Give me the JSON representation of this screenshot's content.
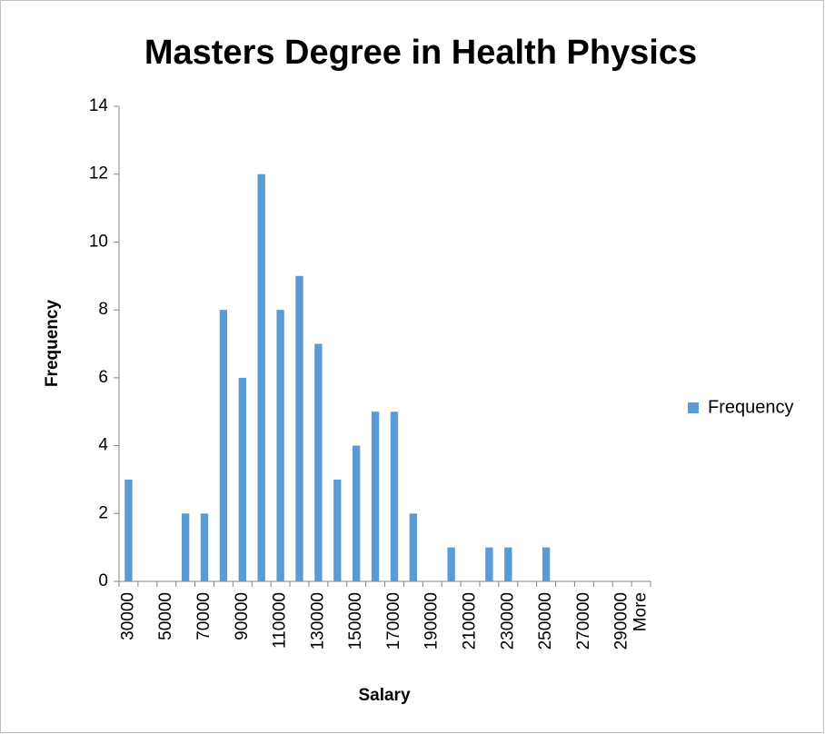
{
  "chart_data": {
    "type": "bar",
    "title": "Masters Degree in Health Physics",
    "x_label": "Salary",
    "y_label": "Frequency",
    "categories": [
      "30000",
      null,
      "50000",
      null,
      "70000",
      null,
      "90000",
      null,
      "110000",
      null,
      "130000",
      null,
      "150000",
      null,
      "170000",
      null,
      "190000",
      null,
      "210000",
      null,
      "230000",
      null,
      "250000",
      null,
      "270000",
      null,
      "290000",
      "More"
    ],
    "series": [
      {
        "name": "Frequency",
        "color": "#5b9bd5",
        "values": [
          3,
          0,
          0,
          2,
          2,
          8,
          6,
          12,
          8,
          9,
          7,
          3,
          4,
          5,
          5,
          2,
          0,
          1,
          0,
          1,
          1,
          0,
          1,
          0,
          0,
          0,
          0,
          0
        ]
      }
    ],
    "ylim": [
      0,
      14
    ],
    "yticks": [
      0,
      2,
      4,
      6,
      8,
      10,
      12,
      14
    ],
    "grid": false,
    "legend": "right"
  }
}
